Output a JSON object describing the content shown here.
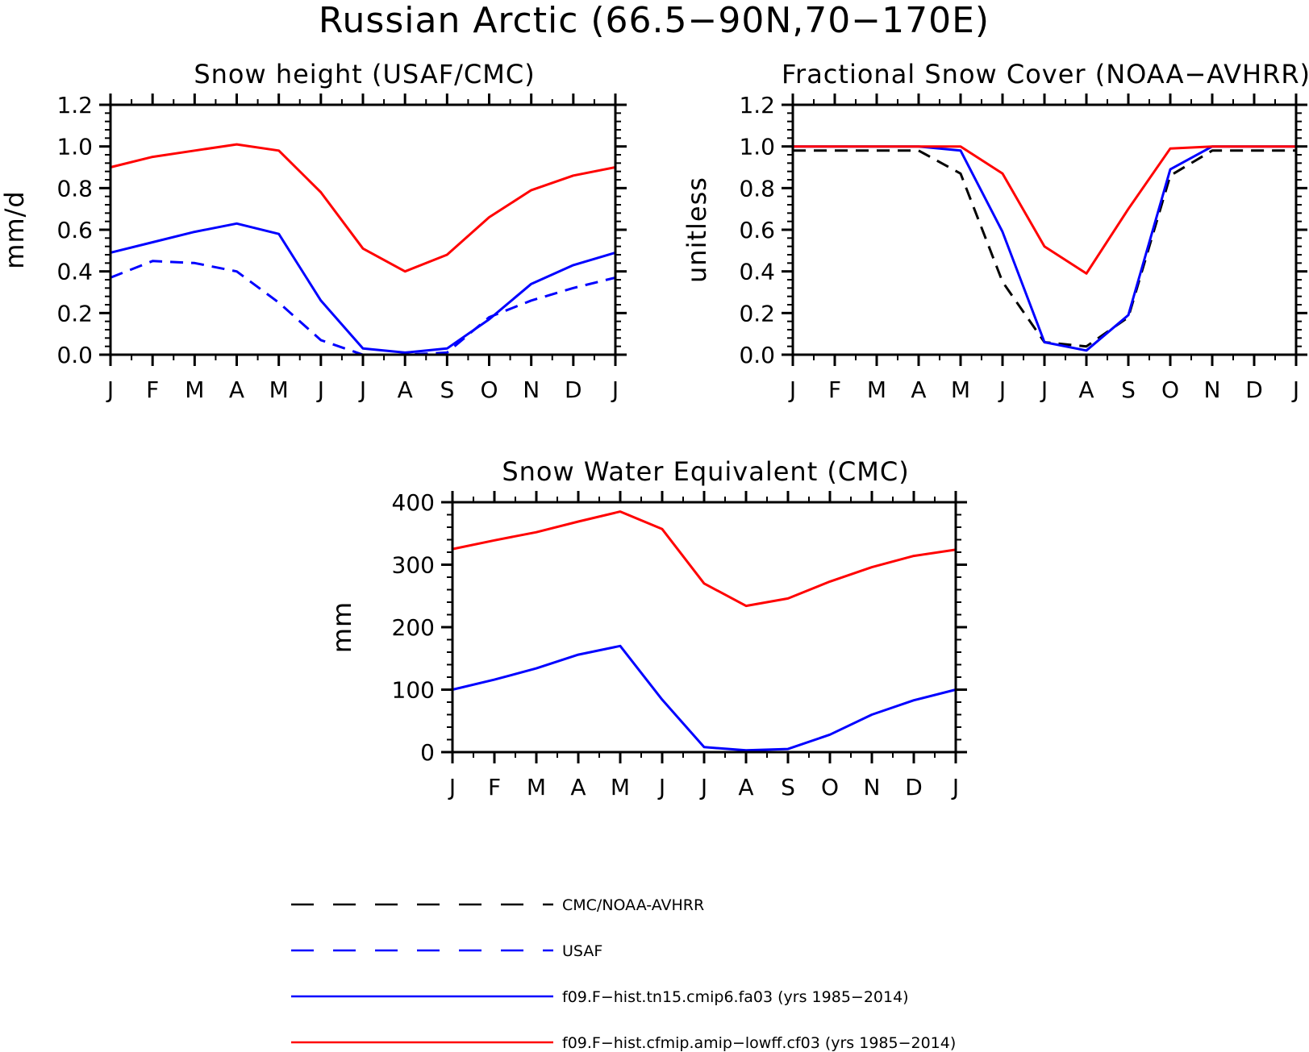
{
  "figure": {
    "title": "Russian Arctic (66.5−90N,70−170E)"
  },
  "legend": {
    "entries": [
      {
        "label": "CMC/NOAA-AVHRR",
        "color": "#000000",
        "dash": "dashed"
      },
      {
        "label": "USAF",
        "color": "#0000ff",
        "dash": "dashed"
      },
      {
        "label": "f09.F−hist.tn15.cmip6.fa03 (yrs 1985−2014)",
        "color": "#0000ff",
        "dash": "solid"
      },
      {
        "label": "f09.F−hist.cfmip.amip−lowff.cf03 (yrs 1985−2014)",
        "color": "#ff0000",
        "dash": "solid"
      }
    ]
  },
  "chart_data": [
    {
      "type": "line",
      "title": "Snow height (USAF/CMC)",
      "xlabel": "",
      "ylabel": "mm/d",
      "categories": [
        "J",
        "F",
        "M",
        "A",
        "M",
        "J",
        "J",
        "A",
        "S",
        "O",
        "N",
        "D",
        "J"
      ],
      "ylim": [
        0,
        1.2
      ],
      "yticks": [
        "0.0",
        "0.2",
        "0.4",
        "0.6",
        "0.8",
        "1.0",
        "1.2"
      ],
      "grid": false,
      "series": [
        {
          "name": "USAF",
          "color": "#0000ff",
          "dash": "dashed",
          "values": [
            0.37,
            0.45,
            0.44,
            0.4,
            0.25,
            0.07,
            0.0,
            0.0,
            0.01,
            0.18,
            0.26,
            0.32,
            0.37
          ]
        },
        {
          "name": "f09.F−hist.tn15.cmip6.fa03 (yrs 1985−2014)",
          "color": "#0000ff",
          "dash": "solid",
          "values": [
            0.49,
            0.54,
            0.59,
            0.63,
            0.58,
            0.26,
            0.03,
            0.01,
            0.03,
            0.17,
            0.34,
            0.43,
            0.49
          ]
        },
        {
          "name": "f09.F−hist.cfmip.amip−lowff.cf03 (yrs 1985−2014)",
          "color": "#ff0000",
          "dash": "solid",
          "values": [
            0.9,
            0.95,
            0.98,
            1.01,
            0.98,
            0.78,
            0.51,
            0.4,
            0.48,
            0.66,
            0.79,
            0.86,
            0.9
          ]
        }
      ]
    },
    {
      "type": "line",
      "title": "Fractional Snow Cover (NOAA−AVHRR)",
      "xlabel": "",
      "ylabel": "unitless",
      "categories": [
        "J",
        "F",
        "M",
        "A",
        "M",
        "J",
        "J",
        "A",
        "S",
        "O",
        "N",
        "D",
        "J"
      ],
      "ylim": [
        0,
        1.2
      ],
      "yticks": [
        "0.0",
        "0.2",
        "0.4",
        "0.6",
        "0.8",
        "1.0",
        "1.2"
      ],
      "grid": false,
      "series": [
        {
          "name": "CMC/NOAA-AVHRR",
          "color": "#000000",
          "dash": "dashed",
          "values": [
            0.98,
            0.98,
            0.98,
            0.98,
            0.87,
            0.35,
            0.06,
            0.04,
            0.18,
            0.86,
            0.98,
            0.98,
            0.98
          ]
        },
        {
          "name": "f09.F−hist.tn15.cmip6.fa03 (yrs 1985−2014)",
          "color": "#0000ff",
          "dash": "solid",
          "values": [
            1.0,
            1.0,
            1.0,
            1.0,
            0.98,
            0.59,
            0.06,
            0.02,
            0.19,
            0.89,
            1.0,
            1.0,
            1.0
          ]
        },
        {
          "name": "f09.F−hist.cfmip.amip−lowff.cf03 (yrs 1985−2014)",
          "color": "#ff0000",
          "dash": "solid",
          "values": [
            1.0,
            1.0,
            1.0,
            1.0,
            1.0,
            0.87,
            0.52,
            0.39,
            0.7,
            0.99,
            1.0,
            1.0,
            1.0
          ]
        }
      ]
    },
    {
      "type": "line",
      "title": "Snow Water Equivalent (CMC)",
      "xlabel": "",
      "ylabel": "mm",
      "categories": [
        "J",
        "F",
        "M",
        "A",
        "M",
        "J",
        "J",
        "A",
        "S",
        "O",
        "N",
        "D",
        "J"
      ],
      "ylim": [
        0,
        400
      ],
      "yticks": [
        "0",
        "100",
        "200",
        "300",
        "400"
      ],
      "grid": false,
      "series": [
        {
          "name": "CMC/NOAA-AVHRR",
          "color": "#000000",
          "dash": "dashed",
          "values": [
            0,
            0,
            0,
            0,
            0,
            0,
            0,
            0,
            0,
            0,
            0,
            0,
            0
          ]
        },
        {
          "name": "f09.F−hist.tn15.cmip6.fa03 (yrs 1985−2014)",
          "color": "#0000ff",
          "dash": "solid",
          "values": [
            100,
            116,
            134,
            156,
            170,
            84,
            8,
            3,
            5,
            28,
            60,
            83,
            100
          ]
        },
        {
          "name": "f09.F−hist.cfmip.amip−lowff.cf03 (yrs 1985−2014)",
          "color": "#ff0000",
          "dash": "solid",
          "values": [
            325,
            339,
            352,
            369,
            385,
            357,
            270,
            234,
            246,
            273,
            296,
            314,
            324
          ]
        }
      ]
    }
  ]
}
